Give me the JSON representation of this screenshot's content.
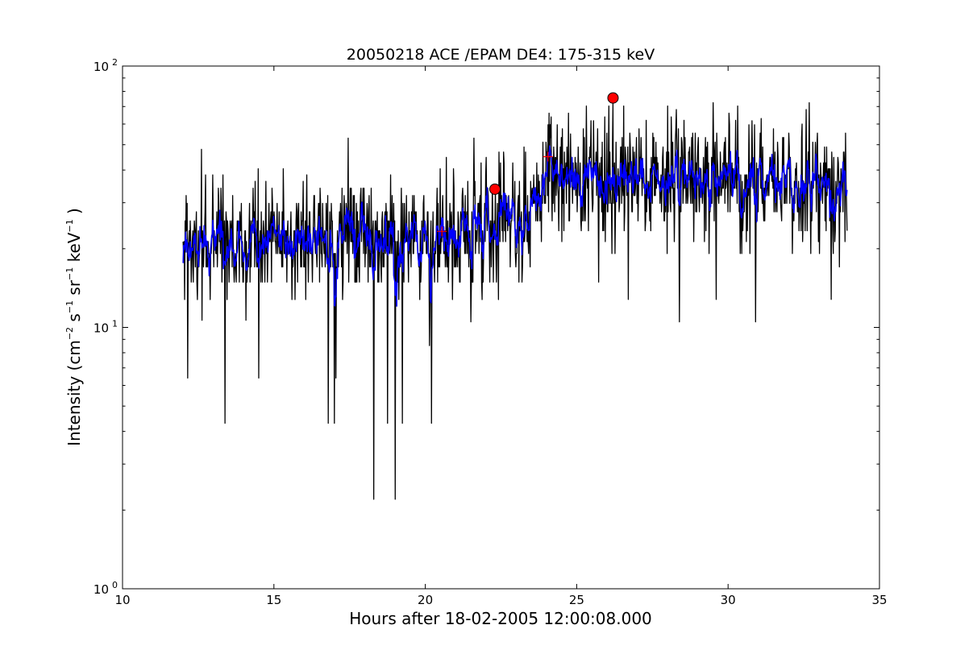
{
  "chart_data": {
    "type": "line",
    "title": "20050218 ACE /EPAM DE4: 175-315 keV",
    "xlabel": "Hours after 18-02-2005 12:00:08.000",
    "ylabel": {
      "prefix": "Intensity (cm",
      "exp1": "−2",
      "s": " s",
      "exp2": "−1",
      "sr": " sr",
      "exp3": "−1",
      "kev": " keV",
      "exp4": "−1",
      "suffix": " )"
    },
    "xlim": [
      10,
      35
    ],
    "ylim": [
      1,
      100
    ],
    "yscale": "log",
    "grid": false,
    "x_ticks": [
      10,
      15,
      20,
      25,
      30,
      35
    ],
    "x_tick_labels": [
      "10",
      "15",
      "20",
      "25",
      "30",
      "35"
    ],
    "y_ticks": [
      1,
      10,
      100
    ],
    "y_tick_labels": [
      {
        "base": "10",
        "exp": "0"
      },
      {
        "base": "10",
        "exp": "1"
      },
      {
        "base": "10",
        "exp": "2"
      }
    ],
    "series": [
      {
        "key": "raw",
        "color": "#000000",
        "x_start": 12.0,
        "x_end": 33.93,
        "points": 1300,
        "segments": [
          {
            "x0": 12.0,
            "x1": 13.5,
            "y0": 21,
            "y1": 21
          },
          {
            "x0": 13.5,
            "x1": 17.0,
            "y0": 21,
            "y1": 22
          },
          {
            "x0": 17.0,
            "x1": 20.5,
            "y0": 22,
            "y1": 20
          },
          {
            "x0": 20.5,
            "x1": 23.0,
            "y0": 20,
            "y1": 27
          },
          {
            "x0": 23.0,
            "x1": 24.0,
            "y0": 27,
            "y1": 33
          },
          {
            "x0": 24.0,
            "x1": 34.0,
            "y0": 38,
            "y1": 35
          }
        ],
        "spikes_low": [
          [
            13.38,
            4.3
          ],
          [
            16.8,
            4.3
          ],
          [
            17.0,
            4.3
          ],
          [
            18.3,
            2.2
          ],
          [
            18.75,
            4.3
          ],
          [
            19.0,
            2.2
          ],
          [
            19.25,
            4.3
          ],
          [
            20.2,
            4.3
          ],
          [
            17.05,
            6.4
          ],
          [
            12.15,
            6.4
          ],
          [
            14.5,
            6.4
          ],
          [
            21.5,
            10.5
          ],
          [
            26.7,
            12.8
          ],
          [
            28.4,
            10.5
          ],
          [
            30.9,
            10.5
          ],
          [
            29.6,
            12.8
          ],
          [
            33.4,
            12.8
          ]
        ],
        "spikes_high": [
          [
            12.6,
            48
          ],
          [
            17.45,
            53
          ],
          [
            21.6,
            53
          ],
          [
            24.8,
            55
          ],
          [
            26.2,
            72
          ],
          [
            27.3,
            62
          ],
          [
            28.55,
            62
          ],
          [
            30.25,
            62
          ],
          [
            31.1,
            63
          ],
          [
            32.45,
            60
          ]
        ]
      },
      {
        "key": "smoothed",
        "color": "#0000ff",
        "x_start": 12.0,
        "x_end": 33.93,
        "points": 1300
      }
    ],
    "markers": [
      {
        "kind": "circle",
        "x": 22.3,
        "y": 33.8,
        "color": "#ff0000"
      },
      {
        "kind": "circle",
        "x": 26.2,
        "y": 75.5,
        "color": "#ff0000"
      },
      {
        "kind": "plus",
        "x": 20.55,
        "y": 23.3,
        "color": "#ff0000"
      },
      {
        "kind": "plus",
        "x": 24.05,
        "y": 45.0,
        "color": "#ff0000"
      }
    ]
  }
}
